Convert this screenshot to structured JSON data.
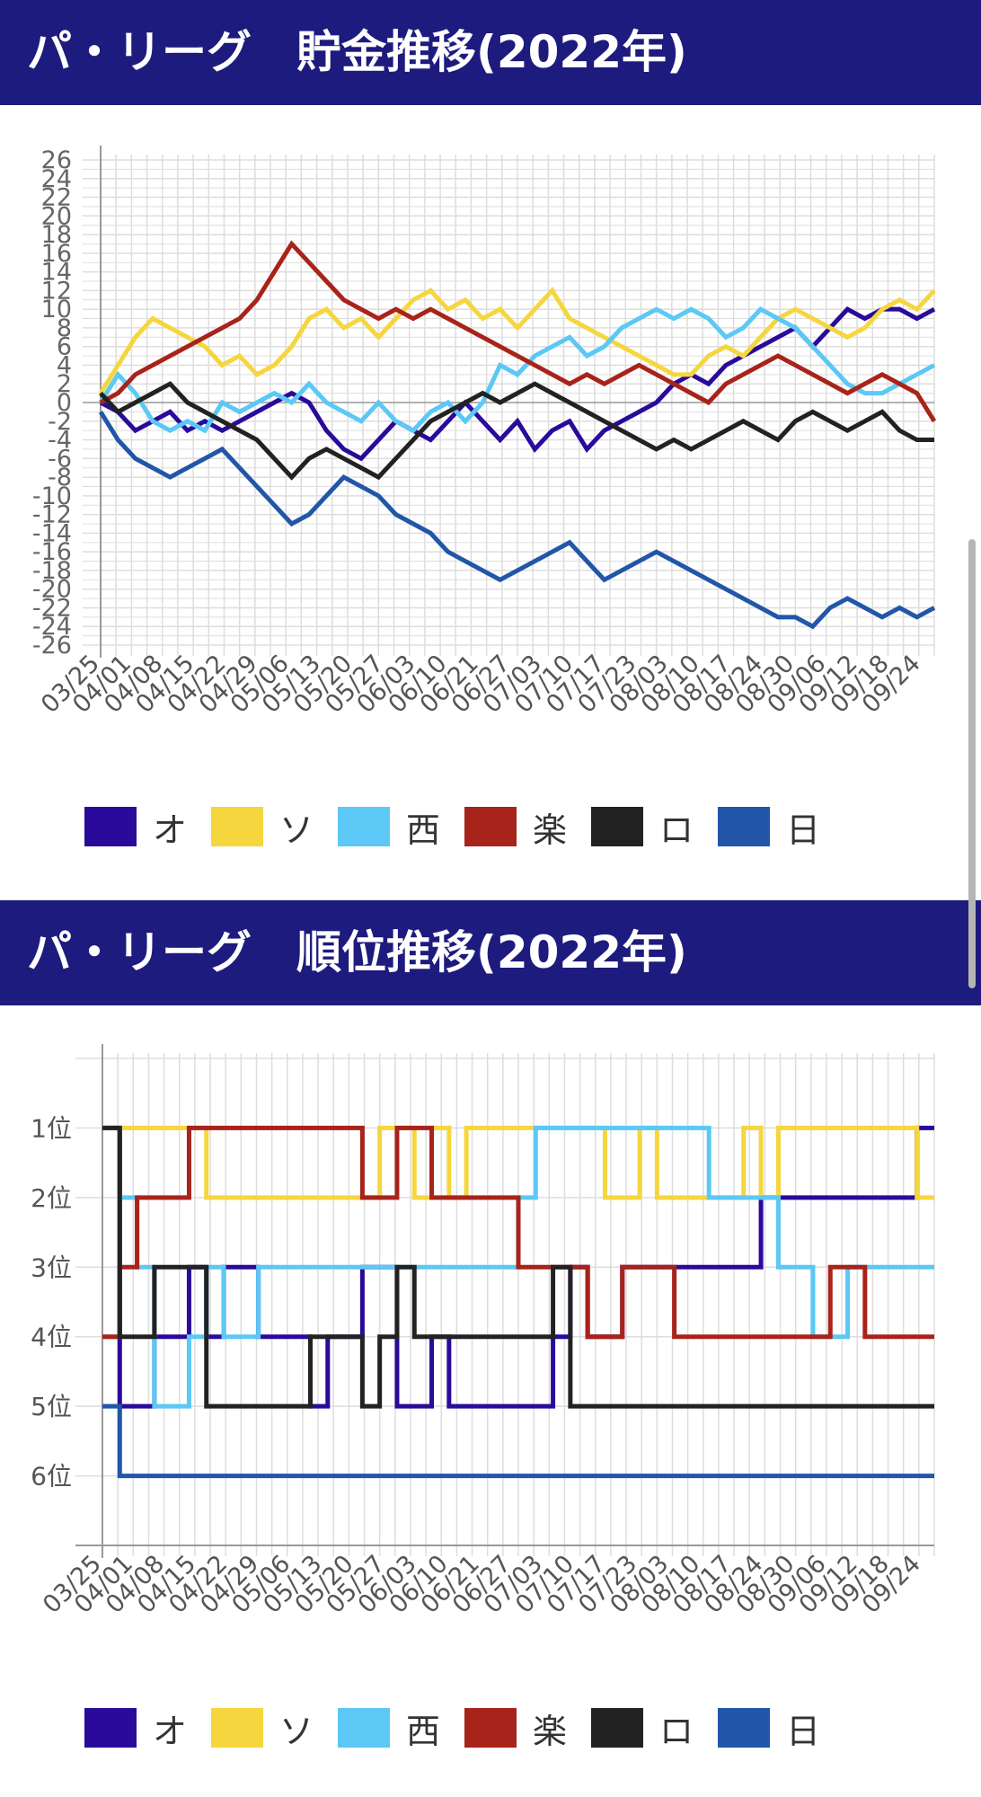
{
  "headers": {
    "savings": "パ・リーグ　貯金推移(2022年)",
    "rank": "パ・リーグ　順位推移(2022年)"
  },
  "legend": [
    {
      "label": "オ",
      "color": "#2a0a9a"
    },
    {
      "label": "ソ",
      "color": "#f5d63f"
    },
    {
      "label": "西",
      "color": "#5bc8f5"
    },
    {
      "label": "楽",
      "color": "#a8231a"
    },
    {
      "label": "ロ",
      "color": "#222222"
    },
    {
      "label": "日",
      "color": "#2156a8"
    }
  ],
  "chart_data": [
    {
      "type": "line",
      "title": "パ・リーグ　貯金推移(2022年)",
      "x_ticks": [
        "03/25",
        "04/01",
        "04/08",
        "04/15",
        "04/22",
        "04/29",
        "05/06",
        "05/13",
        "05/20",
        "05/27",
        "06/03",
        "06/10",
        "06/21",
        "06/27",
        "07/03",
        "07/10",
        "07/17",
        "07/23",
        "08/03",
        "08/10",
        "08/17",
        "08/24",
        "08/30",
        "09/06",
        "09/12",
        "09/18",
        "09/24"
      ],
      "y_ticks": [
        26,
        24,
        22,
        20,
        18,
        16,
        14,
        12,
        10,
        8,
        6,
        4,
        2,
        0,
        -2,
        -4,
        -6,
        -8,
        -10,
        -12,
        -14,
        -16,
        -18,
        -20,
        -22,
        -24,
        -26
      ],
      "ylim": [
        -26,
        26
      ],
      "grid": true,
      "legend_position": "bottom",
      "series": [
        {
          "name": "オ",
          "color": "#2a0a9a",
          "values": [
            0,
            -1,
            -3,
            -2,
            -1,
            -3,
            -2,
            -3,
            -2,
            -1,
            0,
            1,
            0,
            -3,
            -5,
            -6,
            -4,
            -2,
            -3,
            -4,
            -2,
            0,
            -2,
            -4,
            -2,
            -5,
            -3,
            -2,
            -5,
            -3,
            -2,
            -1,
            0,
            2,
            3,
            2,
            4,
            5,
            6,
            7,
            8,
            6,
            8,
            10,
            9,
            10,
            10,
            9,
            10
          ]
        },
        {
          "name": "ソ",
          "color": "#f5d63f",
          "values": [
            1,
            4,
            7,
            9,
            8,
            7,
            6,
            4,
            5,
            3,
            4,
            6,
            9,
            10,
            8,
            9,
            7,
            9,
            11,
            12,
            10,
            11,
            9,
            10,
            8,
            10,
            12,
            9,
            8,
            7,
            6,
            5,
            4,
            3,
            3,
            5,
            6,
            5,
            7,
            9,
            10,
            9,
            8,
            7,
            8,
            10,
            11,
            10,
            12
          ]
        },
        {
          "name": "西",
          "color": "#5bc8f5",
          "values": [
            0,
            3,
            1,
            -2,
            -3,
            -2,
            -3,
            0,
            -1,
            0,
            1,
            0,
            2,
            0,
            -1,
            -2,
            0,
            -2,
            -3,
            -1,
            0,
            -2,
            0,
            4,
            3,
            5,
            6,
            7,
            5,
            6,
            8,
            9,
            10,
            9,
            10,
            9,
            7,
            8,
            10,
            9,
            8,
            6,
            4,
            2,
            1,
            1,
            2,
            3,
            4
          ]
        },
        {
          "name": "楽",
          "color": "#a8231a",
          "values": [
            0,
            1,
            3,
            4,
            5,
            6,
            7,
            8,
            9,
            11,
            14,
            17,
            15,
            13,
            11,
            10,
            9,
            10,
            9,
            10,
            9,
            8,
            7,
            6,
            5,
            4,
            3,
            2,
            3,
            2,
            3,
            4,
            3,
            2,
            1,
            0,
            2,
            3,
            4,
            5,
            4,
            3,
            2,
            1,
            2,
            3,
            2,
            1,
            -2
          ]
        },
        {
          "name": "ロ",
          "color": "#222222",
          "values": [
            1,
            -1,
            0,
            1,
            2,
            0,
            -1,
            -2,
            -3,
            -4,
            -6,
            -8,
            -6,
            -5,
            -6,
            -7,
            -8,
            -6,
            -4,
            -2,
            -1,
            0,
            1,
            0,
            1,
            2,
            1,
            0,
            -1,
            -2,
            -3,
            -4,
            -5,
            -4,
            -5,
            -4,
            -3,
            -2,
            -3,
            -4,
            -2,
            -1,
            -2,
            -3,
            -2,
            -1,
            -3,
            -4,
            -4
          ]
        },
        {
          "name": "日",
          "color": "#2156a8",
          "values": [
            -1,
            -4,
            -6,
            -7,
            -8,
            -7,
            -6,
            -5,
            -7,
            -9,
            -11,
            -13,
            -12,
            -10,
            -8,
            -9,
            -10,
            -12,
            -13,
            -14,
            -16,
            -17,
            -18,
            -19,
            -18,
            -17,
            -16,
            -15,
            -17,
            -19,
            -18,
            -17,
            -16,
            -17,
            -18,
            -19,
            -20,
            -21,
            -22,
            -23,
            -23,
            -24,
            -22,
            -21,
            -22,
            -23,
            -22,
            -23,
            -22
          ]
        }
      ]
    },
    {
      "type": "line",
      "title": "パ・リーグ　順位推移(2022年)",
      "x_ticks": [
        "03/25",
        "04/01",
        "04/08",
        "04/15",
        "04/22",
        "04/29",
        "05/06",
        "05/13",
        "05/20",
        "05/27",
        "06/03",
        "06/10",
        "06/21",
        "06/27",
        "07/03",
        "07/10",
        "07/17",
        "07/23",
        "08/03",
        "08/10",
        "08/17",
        "08/24",
        "08/30",
        "09/06",
        "09/12",
        "09/18",
        "09/24"
      ],
      "y_ticks": [
        "1位",
        "2位",
        "3位",
        "4位",
        "5位",
        "6位"
      ],
      "ylim": [
        0,
        7
      ],
      "y_reversed": true,
      "grid": true,
      "legend_position": "bottom",
      "series": [
        {
          "name": "オ",
          "color": "#2a0a9a",
          "values": [
            1,
            5,
            5,
            4,
            4,
            3,
            4,
            3,
            3,
            4,
            4,
            4,
            5,
            4,
            4,
            3,
            3,
            5,
            5,
            4,
            5,
            5,
            5,
            5,
            5,
            5,
            4,
            3,
            4,
            4,
            3,
            3,
            3,
            3,
            3,
            3,
            3,
            3,
            2,
            2,
            2,
            2,
            2,
            2,
            2,
            2,
            2,
            1
          ]
        },
        {
          "name": "ソ",
          "color": "#f5d63f",
          "values": [
            1,
            1,
            1,
            1,
            1,
            1,
            2,
            2,
            2,
            2,
            2,
            2,
            2,
            2,
            2,
            2,
            1,
            1,
            2,
            1,
            2,
            1,
            1,
            1,
            1,
            1,
            1,
            1,
            1,
            2,
            2,
            1,
            2,
            2,
            2,
            2,
            2,
            1,
            2,
            1,
            1,
            1,
            1,
            1,
            1,
            1,
            1,
            2
          ]
        },
        {
          "name": "西",
          "color": "#5bc8f5",
          "values": [
            4,
            2,
            3,
            5,
            5,
            4,
            3,
            4,
            4,
            3,
            3,
            3,
            3,
            3,
            3,
            3,
            3,
            3,
            3,
            3,
            3,
            3,
            3,
            3,
            2,
            1,
            1,
            1,
            1,
            1,
            1,
            1,
            1,
            1,
            1,
            2,
            2,
            2,
            2,
            3,
            3,
            4,
            4,
            3,
            3,
            3,
            3,
            3
          ]
        },
        {
          "name": "楽",
          "color": "#a8231a",
          "values": [
            4,
            3,
            2,
            2,
            2,
            1,
            1,
            1,
            1,
            1,
            1,
            1,
            1,
            1,
            1,
            2,
            2,
            1,
            1,
            2,
            2,
            2,
            2,
            2,
            3,
            3,
            3,
            3,
            4,
            4,
            3,
            3,
            3,
            4,
            4,
            4,
            4,
            4,
            4,
            4,
            4,
            4,
            3,
            3,
            4,
            4,
            4,
            4
          ]
        },
        {
          "name": "ロ",
          "color": "#222222",
          "values": [
            1,
            4,
            4,
            3,
            3,
            3,
            5,
            5,
            5,
            5,
            5,
            5,
            4,
            4,
            4,
            5,
            4,
            3,
            4,
            4,
            4,
            4,
            4,
            4,
            4,
            4,
            3,
            5,
            5,
            5,
            5,
            5,
            5,
            5,
            5,
            5,
            5,
            5,
            5,
            5,
            5,
            5,
            5,
            5,
            5,
            5,
            5,
            5
          ]
        },
        {
          "name": "日",
          "color": "#2156a8",
          "values": [
            5,
            6,
            6,
            6,
            6,
            6,
            6,
            6,
            6,
            6,
            6,
            6,
            6,
            6,
            6,
            6,
            6,
            6,
            6,
            6,
            6,
            6,
            6,
            6,
            6,
            6,
            6,
            6,
            6,
            6,
            6,
            6,
            6,
            6,
            6,
            6,
            6,
            6,
            6,
            6,
            6,
            6,
            6,
            6,
            6,
            6,
            6,
            6
          ]
        }
      ]
    }
  ]
}
